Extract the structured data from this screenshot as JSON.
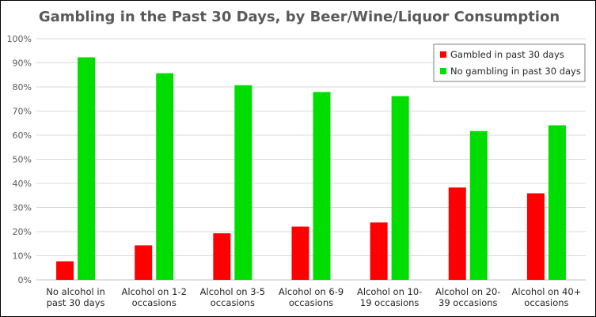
{
  "chart_data": {
    "type": "bar",
    "title": "Gambling in the Past 30 Days, by Beer/Wine/Liquor Consumption",
    "xlabel": "",
    "ylabel": "",
    "ylim": [
      0,
      100
    ],
    "yticks": [
      "0%",
      "10%",
      "20%",
      "30%",
      "40%",
      "50%",
      "60%",
      "70%",
      "80%",
      "90%",
      "100%"
    ],
    "grid": true,
    "legend_position": "top-right",
    "categories": [
      [
        "No alcohol in",
        "past 30 days"
      ],
      [
        "Alcohol on 1-2",
        "occasions"
      ],
      [
        "Alcohol on 3-5",
        "occasions"
      ],
      [
        "Alcohol on 6-9",
        "occasions"
      ],
      [
        "Alcohol on 10-",
        "19 occasions"
      ],
      [
        "Alcohol on 20-",
        "39 occasions"
      ],
      [
        "Alcohol on 40+",
        "occasions"
      ]
    ],
    "series": [
      {
        "name": "Gambled in past 30 days",
        "color": "#ff0000",
        "values": [
          7.7,
          14.3,
          19.3,
          22.1,
          23.8,
          38.3,
          35.9
        ]
      },
      {
        "name": "No gambling in past 30 days",
        "color": "#00dd00",
        "values": [
          92.3,
          85.7,
          80.7,
          77.9,
          76.2,
          61.7,
          64.1
        ]
      }
    ]
  }
}
